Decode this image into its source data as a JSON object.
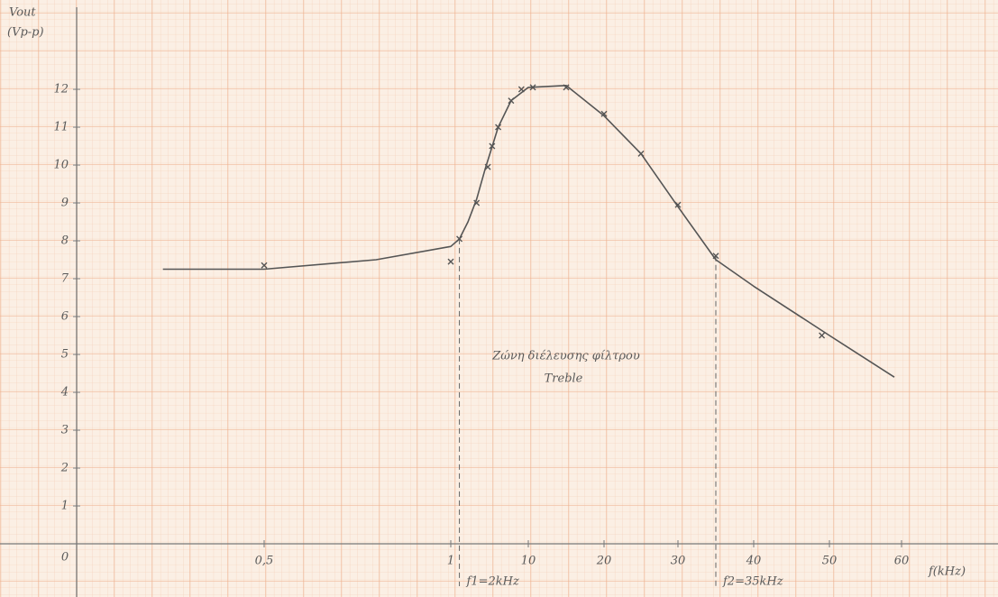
{
  "chart_data": {
    "type": "line",
    "ylabel": [
      "Vout",
      "(Vp-p)"
    ],
    "xlabel": "f(kHz)",
    "x": [
      0.5,
      1,
      2,
      4,
      5.3,
      5.8,
      6.5,
      8,
      9.2,
      10.6,
      15,
      20,
      25,
      30,
      35,
      49
    ],
    "values": [
      7.35,
      7.45,
      8.05,
      9,
      9.95,
      10.5,
      11,
      11.7,
      12,
      12.05,
      12.05,
      11.35,
      10.3,
      8.95,
      7.6,
      5.5
    ],
    "fit_x": [
      0.23,
      0.5,
      0.8,
      1,
      2,
      3,
      4,
      5,
      6.5,
      8,
      10,
      15,
      20,
      25,
      30,
      35,
      40,
      50,
      59
    ],
    "fit_values": [
      7.25,
      7.25,
      7.5,
      7.85,
      8.05,
      8.5,
      9.1,
      9.9,
      11,
      11.7,
      12.05,
      12.1,
      11.3,
      10.3,
      8.9,
      7.5,
      6.8,
      5.5,
      4.4
    ],
    "color": "#555555",
    "xlim": [
      0,
      70
    ],
    "xticks": [
      {
        "value": 0.5,
        "label": "0,5"
      },
      1,
      10,
      20,
      30,
      40,
      50,
      60
    ],
    "ylim": [
      0,
      14
    ],
    "yticks": [
      0,
      1,
      2,
      3,
      4,
      5,
      6,
      7,
      8,
      9,
      10,
      11,
      12
    ],
    "vlines": [
      {
        "x": 2,
        "y": 8.05,
        "label": "f1=2kHz"
      },
      {
        "x": 35,
        "y": 7.6,
        "label": "f2=35kHz"
      }
    ],
    "band_label": [
      "Ζώνη διέλευσης φίλτρου",
      "Treble"
    ]
  }
}
